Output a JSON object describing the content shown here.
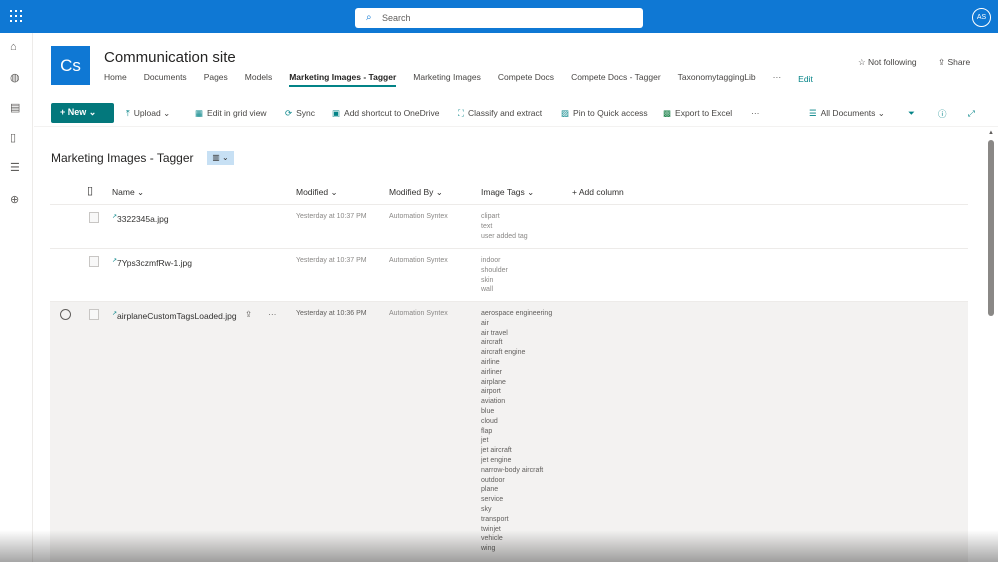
{
  "topbar": {
    "search_placeholder": "Search",
    "avatar": "AS",
    "accent": "#0f78d4"
  },
  "site": {
    "logo": "Cs",
    "title": "Communication site",
    "follow": "Not following",
    "share": "Share"
  },
  "nav": [
    "Home",
    "Documents",
    "Pages",
    "Models",
    "Marketing Images - Tagger",
    "Marketing Images",
    "Compete Docs",
    "Compete Docs - Tagger",
    "TaxonomytaggingLib",
    "···",
    "Edit"
  ],
  "commands": {
    "new": "New",
    "upload": "Upload",
    "grid": "Edit in grid view",
    "sync": "Sync",
    "shortcut": "Add shortcut to OneDrive",
    "classify": "Classify and extract",
    "pin": "Pin to Quick access",
    "excel": "Export to Excel",
    "more": "···",
    "view": "All Documents"
  },
  "library": {
    "title": "Marketing Images - Tagger"
  },
  "columns": {
    "name": "Name",
    "modified": "Modified",
    "modified_by": "Modified By",
    "tags": "Image Tags",
    "add": "Add column"
  },
  "rows": [
    {
      "name": "3322345a.jpg",
      "modified": "Yesterday at 10:37 PM",
      "by": "Automation Syntex",
      "tags": "clipart\ntext\nuser added tag"
    },
    {
      "name": "7Yps3czmfRw-1.jpg",
      "modified": "Yesterday at 10:37 PM",
      "by": "Automation Syntex",
      "tags": "indoor\nshoulder\nskin\nwall"
    },
    {
      "name": "airplaneCustomTagsLoaded.jpg",
      "modified": "Yesterday at 10:36 PM",
      "by": "Automation Syntex",
      "tags": "aerospace engineering\nair\nair travel\naircraft\naircraft engine\nairline\nairliner\nairplane\nairport\naviation\nblue\ncloud\nflap\njet\njet aircraft\njet engine\nnarrow-body aircraft\noutdoor\nplane\nservice\nsky\ntransport\ntwinjet\nvehicle\nwing"
    }
  ]
}
